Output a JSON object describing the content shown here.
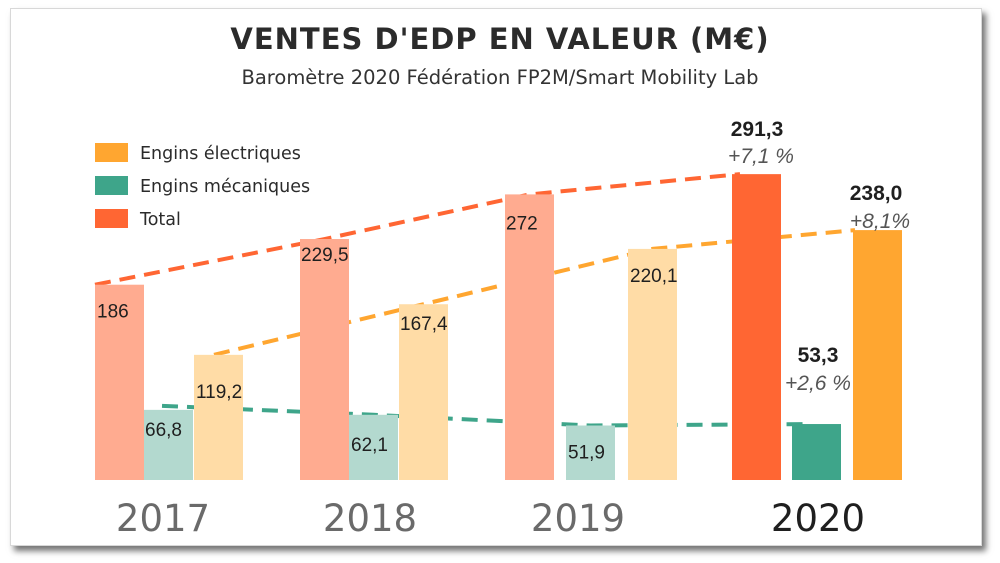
{
  "chart_data": {
    "type": "bar",
    "title": "VENTES D'EDP EN VALEUR (M€)",
    "subtitle": "Baromètre 2020 Fédération FP2M/Smart Mobility Lab",
    "categories": [
      "2017",
      "2018",
      "2019",
      "2020"
    ],
    "series": [
      {
        "name": "Total",
        "values": [
          186,
          229.5,
          272,
          291.3
        ],
        "labels": [
          "186",
          "229,5",
          "272",
          "291,3"
        ],
        "color": "#ff6633",
        "color_faded": "#ffab90"
      },
      {
        "name": "Engins mécaniques",
        "values": [
          66.8,
          62.1,
          51.9,
          53.3
        ],
        "labels": [
          "66,8",
          "62,1",
          "51,9",
          "53,3"
        ],
        "color": "#3ea58a",
        "color_faded": "#b3d9cf"
      },
      {
        "name": "Engins électriques",
        "values": [
          119.2,
          167.4,
          220.1,
          238.0
        ],
        "labels": [
          "119,2",
          "167,4",
          "220,1",
          "238,0"
        ],
        "color": "#ffa630",
        "color_faded": "#ffdca6"
      }
    ],
    "growth_2020": {
      "Total": "+7,1 %",
      "Engins électriques": "+8,1%",
      "Engins mécaniques": "+2,6 %"
    },
    "legend": {
      "position": "top-left",
      "entries": [
        "Engins électriques",
        "Engins mécaniques",
        "Total"
      ]
    },
    "trend_lines": "dashed",
    "highlight_category": "2020",
    "grid": false
  }
}
